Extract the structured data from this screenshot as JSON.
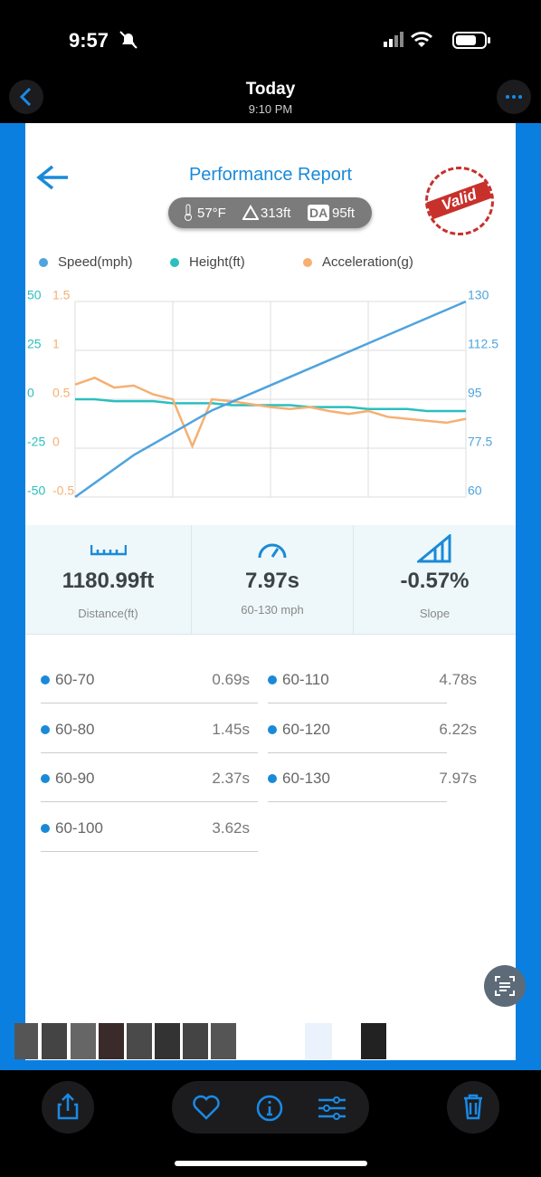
{
  "status_bar": {
    "time": "9:57"
  },
  "nav": {
    "title": "Today",
    "subtitle": "9:10 PM"
  },
  "report": {
    "title": "Performance Report",
    "stamp": "Valid",
    "conditions": {
      "temperature": "57°F",
      "elevation": "313ft",
      "da_label": "DA",
      "density_altitude": "95ft"
    }
  },
  "chart_data": {
    "type": "line",
    "categories": [
      null,
      null,
      null,
      null,
      null,
      null,
      null,
      null,
      null,
      null,
      null,
      null,
      null,
      null,
      null,
      null,
      null,
      null,
      null,
      null,
      null
    ],
    "series": [
      {
        "name": "Speed(mph)",
        "color": "#4fa3de",
        "axis": "y2",
        "values": [
          60,
          65,
          70,
          75,
          79,
          83,
          87,
          91,
          94,
          97,
          100,
          103,
          106,
          109,
          112,
          115,
          118,
          121,
          124,
          127,
          130
        ]
      },
      {
        "name": "Height(ft)",
        "color": "#2bbfbd",
        "axis": "y",
        "values": [
          0,
          0,
          -1,
          -1,
          -1,
          -2,
          -2,
          -2,
          -3,
          -3,
          -3,
          -3,
          -4,
          -4,
          -4,
          -5,
          -5,
          -5,
          -6,
          -6,
          -6
        ]
      },
      {
        "name": "Acceleration(g)",
        "color": "#f5b072",
        "axis": "y3",
        "values": [
          0.65,
          0.72,
          0.62,
          0.64,
          0.55,
          0.5,
          0.02,
          0.5,
          0.48,
          0.45,
          0.42,
          0.4,
          0.42,
          0.38,
          0.35,
          0.38,
          0.32,
          0.3,
          0.28,
          0.26,
          0.3
        ]
      }
    ],
    "ylim": [
      -50,
      50
    ],
    "yticks": [
      50,
      25,
      0,
      -25,
      -50
    ],
    "y3lim": [
      -0.5,
      1.5
    ],
    "y3ticks": [
      1.5,
      1,
      0.5,
      0,
      -0.5
    ],
    "y2lim": [
      60,
      130
    ],
    "y2ticks": [
      130,
      112.5,
      95,
      77.5,
      60
    ],
    "grid": true
  },
  "stats": [
    {
      "value": "1180.99ft",
      "label": "Distance(ft)"
    },
    {
      "value": "7.97s",
      "label": "60-130 mph"
    },
    {
      "value": "-0.57%",
      "label": "Slope"
    }
  ],
  "splits": [
    {
      "range": "60-70",
      "time": "0.69s"
    },
    {
      "range": "60-80",
      "time": "1.45s"
    },
    {
      "range": "60-90",
      "time": "2.37s"
    },
    {
      "range": "60-100",
      "time": "3.62s"
    },
    {
      "range": "60-110",
      "time": "4.78s"
    },
    {
      "range": "60-120",
      "time": "6.22s"
    },
    {
      "range": "60-130",
      "time": "7.97s"
    }
  ]
}
